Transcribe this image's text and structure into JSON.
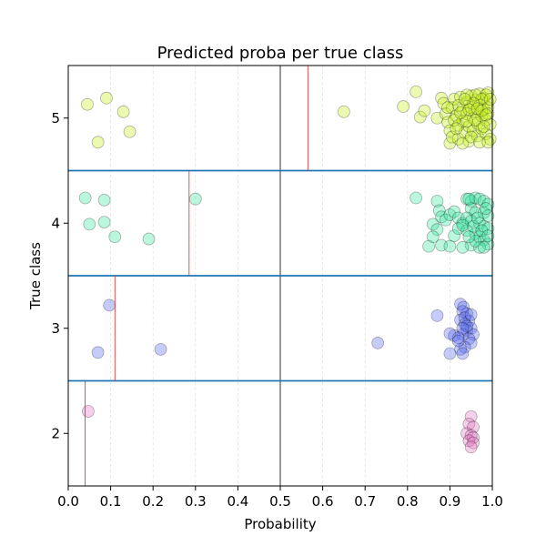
{
  "chart_data": {
    "type": "scatter",
    "title": "Predicted proba per true class",
    "xlabel": "Probability",
    "ylabel": "True class",
    "xlim": [
      0.0,
      1.0
    ],
    "ylim": [
      1.5,
      5.5
    ],
    "xticks": [
      "0.0",
      "0.1",
      "0.2",
      "0.3",
      "0.4",
      "0.5",
      "0.6",
      "0.7",
      "0.8",
      "0.9",
      "1.0"
    ],
    "yticks": [
      "2",
      "3",
      "4",
      "5"
    ],
    "grid": "vertical dashed at x ticks",
    "decision_line_x": 0.5,
    "class_separators_y": [
      2.5,
      3.5,
      4.5
    ],
    "classes": [
      {
        "name": "2",
        "color": "#e377c2",
        "threshold": 0.04,
        "points": [
          [
            0.047,
            2.21
          ],
          [
            0.95,
            2.16
          ],
          [
            0.945,
            2.09
          ],
          [
            0.955,
            2.06
          ],
          [
            0.94,
            2.0
          ],
          [
            0.95,
            1.98
          ],
          [
            0.955,
            1.96
          ],
          [
            0.945,
            1.93
          ],
          [
            0.955,
            1.91
          ],
          [
            0.95,
            1.87
          ]
        ]
      },
      {
        "name": "3",
        "color": "#5b6cf0",
        "threshold": 0.11,
        "points": [
          [
            0.097,
            3.22
          ],
          [
            0.07,
            2.77
          ],
          [
            0.218,
            2.8
          ],
          [
            0.73,
            2.86
          ],
          [
            0.87,
            3.12
          ],
          [
            0.925,
            3.23
          ],
          [
            0.932,
            3.2
          ],
          [
            0.94,
            3.14
          ],
          [
            0.93,
            3.16
          ],
          [
            0.945,
            3.07
          ],
          [
            0.925,
            3.08
          ],
          [
            0.935,
            3.04
          ],
          [
            0.95,
            3.0
          ],
          [
            0.94,
            2.98
          ],
          [
            0.955,
            2.94
          ],
          [
            0.93,
            2.94
          ],
          [
            0.91,
            2.93
          ],
          [
            0.92,
            2.91
          ],
          [
            0.9,
            2.95
          ],
          [
            0.945,
            2.9
          ],
          [
            0.95,
            2.86
          ],
          [
            0.935,
            2.82
          ],
          [
            0.925,
            2.8
          ],
          [
            0.93,
            2.76
          ],
          [
            0.9,
            2.76
          ],
          [
            0.935,
            3.1
          ],
          [
            0.94,
            3.02
          ],
          [
            0.93,
            3.0
          ],
          [
            0.95,
            3.13
          ],
          [
            0.92,
            2.88
          ]
        ]
      },
      {
        "name": "4",
        "color": "#3de6a0",
        "threshold": 0.285,
        "points": [
          [
            0.04,
            4.24
          ],
          [
            0.085,
            4.22
          ],
          [
            0.05,
            3.99
          ],
          [
            0.085,
            4.01
          ],
          [
            0.11,
            3.87
          ],
          [
            0.19,
            3.85
          ],
          [
            0.3,
            4.23
          ],
          [
            0.82,
            4.24
          ],
          [
            0.87,
            4.21
          ],
          [
            0.875,
            4.12
          ],
          [
            0.88,
            4.06
          ],
          [
            0.89,
            4.03
          ],
          [
            0.9,
            4.08
          ],
          [
            0.91,
            4.11
          ],
          [
            0.92,
            4.05
          ],
          [
            0.93,
            4.0
          ],
          [
            0.86,
            3.99
          ],
          [
            0.87,
            3.94
          ],
          [
            0.86,
            3.87
          ],
          [
            0.85,
            3.78
          ],
          [
            0.88,
            3.79
          ],
          [
            0.9,
            3.78
          ],
          [
            0.91,
            3.88
          ],
          [
            0.92,
            3.95
          ],
          [
            0.94,
            4.23
          ],
          [
            0.95,
            4.21
          ],
          [
            0.96,
            4.24
          ],
          [
            0.97,
            4.23
          ],
          [
            0.98,
            4.21
          ],
          [
            0.99,
            4.18
          ],
          [
            0.95,
            4.14
          ],
          [
            0.96,
            4.1
          ],
          [
            0.98,
            4.1
          ],
          [
            0.99,
            4.07
          ],
          [
            0.94,
            4.05
          ],
          [
            0.95,
            4.02
          ],
          [
            0.97,
            4.0
          ],
          [
            0.98,
            3.97
          ],
          [
            0.99,
            3.95
          ],
          [
            0.94,
            3.93
          ],
          [
            0.96,
            3.9
          ],
          [
            0.97,
            3.87
          ],
          [
            0.98,
            3.84
          ],
          [
            0.99,
            3.8
          ],
          [
            0.95,
            3.79
          ],
          [
            0.97,
            3.77
          ],
          [
            0.98,
            3.77
          ],
          [
            0.93,
            3.77
          ],
          [
            0.985,
            4.14
          ],
          [
            0.945,
            4.23
          ],
          [
            0.955,
            3.97
          ],
          [
            0.965,
            4.05
          ],
          [
            0.975,
            3.93
          ],
          [
            0.99,
            3.88
          ],
          [
            0.96,
            3.83
          ],
          [
            0.93,
            3.98
          ],
          [
            0.945,
            3.87
          ]
        ]
      },
      {
        "name": "5",
        "color": "#c6f01e",
        "threshold": 0.565,
        "points": [
          [
            0.045,
            5.13
          ],
          [
            0.09,
            5.19
          ],
          [
            0.13,
            5.06
          ],
          [
            0.07,
            4.77
          ],
          [
            0.145,
            4.87
          ],
          [
            0.65,
            5.06
          ],
          [
            0.79,
            5.11
          ],
          [
            0.82,
            5.25
          ],
          [
            0.83,
            5.01
          ],
          [
            0.84,
            5.07
          ],
          [
            0.87,
            5.0
          ],
          [
            0.88,
            5.19
          ],
          [
            0.885,
            5.14
          ],
          [
            0.89,
            5.04
          ],
          [
            0.895,
            4.96
          ],
          [
            0.9,
            4.88
          ],
          [
            0.9,
            4.76
          ],
          [
            0.905,
            5.1
          ],
          [
            0.91,
            5.18
          ],
          [
            0.915,
            5.02
          ],
          [
            0.92,
            4.93
          ],
          [
            0.92,
            4.8
          ],
          [
            0.925,
            5.2
          ],
          [
            0.93,
            5.08
          ],
          [
            0.93,
            4.97
          ],
          [
            0.935,
            4.86
          ],
          [
            0.94,
            5.15
          ],
          [
            0.94,
            5.04
          ],
          [
            0.945,
            4.92
          ],
          [
            0.945,
            4.78
          ],
          [
            0.95,
            5.21
          ],
          [
            0.95,
            5.1
          ],
          [
            0.955,
            5.0
          ],
          [
            0.955,
            4.88
          ],
          [
            0.96,
            5.17
          ],
          [
            0.96,
            5.06
          ],
          [
            0.965,
            4.95
          ],
          [
            0.965,
            4.83
          ],
          [
            0.97,
            5.23
          ],
          [
            0.97,
            5.12
          ],
          [
            0.975,
            5.02
          ],
          [
            0.975,
            4.9
          ],
          [
            0.98,
            5.19
          ],
          [
            0.98,
            5.08
          ],
          [
            0.985,
            4.98
          ],
          [
            0.985,
            4.85
          ],
          [
            0.99,
            5.15
          ],
          [
            0.99,
            5.04
          ],
          [
            0.995,
            4.94
          ],
          [
            0.995,
            4.8
          ],
          [
            0.99,
            5.24
          ],
          [
            0.985,
            5.22
          ],
          [
            0.975,
            5.18
          ],
          [
            0.96,
            5.22
          ],
          [
            0.94,
            5.22
          ],
          [
            0.92,
            5.12
          ],
          [
            0.91,
            4.98
          ],
          [
            0.905,
            4.82
          ],
          [
            0.93,
            4.76
          ],
          [
            0.95,
            4.82
          ],
          [
            0.97,
            4.77
          ],
          [
            0.99,
            4.77
          ],
          [
            0.98,
            4.92
          ],
          [
            0.96,
            4.98
          ],
          [
            0.94,
            4.97
          ],
          [
            0.925,
            5.05
          ],
          [
            0.955,
            5.14
          ],
          [
            0.975,
            5.07
          ],
          [
            0.99,
            5.1
          ],
          [
            0.995,
            5.18
          ],
          [
            0.945,
            5.08
          ],
          [
            0.935,
            5.18
          ],
          [
            0.965,
            5.09
          ],
          [
            0.985,
            5.03
          ],
          [
            0.915,
            4.9
          ],
          [
            0.895,
            5.1
          ]
        ]
      }
    ]
  }
}
